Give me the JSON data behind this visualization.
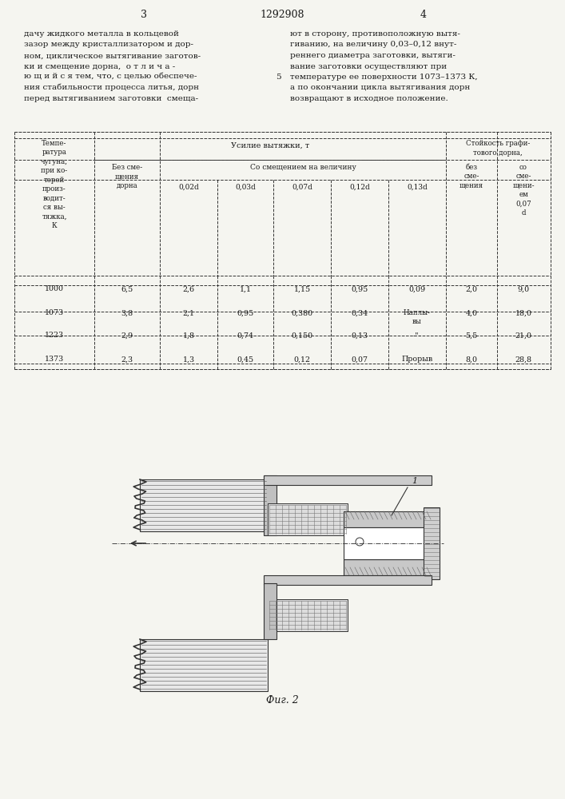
{
  "page_width": 7.07,
  "page_height": 10.0,
  "background_color": "#f5f5f0",
  "header": {
    "left_num": "3",
    "center_num": "1292908",
    "right_num": "4"
  },
  "left_text": [
    "дачу жидкого металла в кольцевой",
    "зазор между кристаллизатором и дор-",
    "ном, циклическое вытягивание заготов-",
    "ки и смещение дорна,  о т л и ч а -",
    "ю щ и й с я тем, что, с целью обеспече-",
    "ния стабильности процесса литья, дорн",
    "перед вытягиванием заготовки  смеща-"
  ],
  "right_text": [
    "ют в сторону, противоположную вытя-",
    "гиванию, на величину 0,03–0,12 внут-",
    "реннего диаметра заготовки, вытяги-",
    "вание заготовки осуществляют при",
    "температуре ее поверхности 1073–1373 К,",
    "а по окончании цикла вытягивания дорн",
    "возвращают в исходное положение."
  ],
  "line5_marker": "5",
  "table": {
    "col_headers": [
      "Темпе-\nратура\nчугуна,\nпри ко-\nторой\nпроиз-\nводит-\nся вы-\nтяжка,\nК",
      "Усилие вытяжки, т",
      "Стойкость графи-\nтового дорна,"
    ],
    "sub_headers_force": [
      "Без сме-\nщения\nдорна",
      "Со смещением на величину"
    ],
    "sub_sub_headers": [
      "0,02d",
      "0,03d",
      "0,07d",
      "0,12d",
      "0,13d"
    ],
    "sub_headers_durability": [
      "без\nсме-\nщения",
      "со\nсме-\nщени-\nем\n0,07\nd"
    ],
    "rows": [
      [
        "1000",
        "6,5",
        "2,6",
        "1,1",
        "1,15",
        "0,95",
        "0,09",
        "2,0",
        "9,0"
      ],
      [
        "1073",
        "3,8",
        "2,1",
        "0,95",
        "0,380",
        "0,34",
        "Наплы-\nвы",
        "4,0",
        "18,0"
      ],
      [
        "1223",
        "2,9",
        "1,8",
        "0,74",
        "0,150",
        "0,13",
        "-\"-",
        "5,5",
        "21,0"
      ],
      [
        "1373",
        "2,3",
        "1,3",
        "0,45",
        "0,12",
        "0,07",
        "Прорыв",
        "8,0",
        "28,8"
      ]
    ]
  },
  "fig_caption": "Фиг. 2",
  "text_color": "#1a1a1a",
  "line_color": "#333333",
  "font_size_main": 7.5,
  "font_size_header": 8.5,
  "font_size_table": 7.0
}
